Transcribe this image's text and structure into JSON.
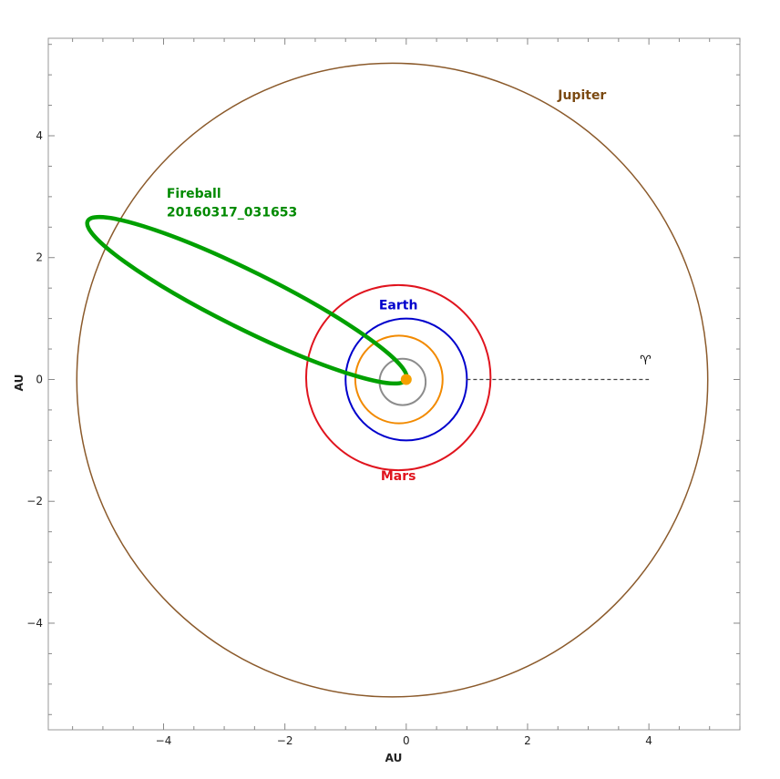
{
  "chart_data": {
    "type": "scatter",
    "title": "",
    "xlabel": "AU",
    "ylabel": "AU",
    "xlim": [
      -5.9,
      5.5
    ],
    "ylim": [
      -5.75,
      5.6
    ],
    "grid": false,
    "x_ticks": [
      -4,
      -2,
      0,
      2,
      4
    ],
    "y_ticks": [
      -4,
      -2,
      0,
      2,
      4
    ],
    "x_tick_labels": [
      "−4",
      "−2",
      "0",
      "2",
      "4"
    ],
    "y_tick_labels": [
      "−4",
      "−2",
      "0",
      "2",
      "4"
    ],
    "orbits": [
      {
        "name": "",
        "color": "#8c8c8c",
        "center": [
          -0.06,
          -0.04
        ],
        "rx": 0.38,
        "ry": 0.38,
        "stroke": 2
      },
      {
        "name": "",
        "color": "#f28a00",
        "center": [
          -0.12,
          0.0
        ],
        "rx": 0.72,
        "ry": 0.72,
        "stroke": 2
      },
      {
        "name": "Earth",
        "color": "#0000cc",
        "center": [
          0.0,
          0.0
        ],
        "rx": 1.0,
        "ry": 1.0,
        "stroke": 2
      },
      {
        "name": "Mars",
        "color": "#e0141e",
        "center": [
          -0.13,
          0.03
        ],
        "rx": 1.52,
        "ry": 1.52,
        "stroke": 2
      },
      {
        "name": "Jupiter",
        "color": "#8b5a2b",
        "center": [
          -0.23,
          -0.01
        ],
        "rx": 5.2,
        "ry": 5.2,
        "stroke": 1.5
      }
    ],
    "fireball_orbit": {
      "name": "Fireball 20160317_031653",
      "color": "#00a000",
      "perihelion": [
        0.0,
        0.0
      ],
      "aphelion": [
        -5.25,
        2.6
      ],
      "semi_minor": 0.47,
      "stroke": 4.5
    },
    "sun": {
      "x": 0.0,
      "y": 0.0,
      "color": "#f5a000"
    },
    "vernal_equinox_line": {
      "from": [
        1.0,
        0.0
      ],
      "to": [
        4.0,
        0.0
      ],
      "color": "#444444"
    },
    "labels": [
      {
        "text": "Jupiter",
        "x": 2.5,
        "y": 4.6,
        "color": "#7b4a12"
      },
      {
        "text": "Earth",
        "x": -0.13,
        "y": 1.15,
        "color": "#0000cc"
      },
      {
        "text": "Mars",
        "x": -0.13,
        "y": -1.65,
        "color": "#e0141e"
      },
      {
        "text": "Fireball",
        "x": -3.95,
        "y": 2.98,
        "color": "#008a00"
      },
      {
        "text": "20160317_031653",
        "x": -3.95,
        "y": 2.68,
        "color": "#008a00"
      },
      {
        "text": "♈",
        "x": 3.85,
        "y": 0.25,
        "color": "#000000"
      }
    ]
  }
}
